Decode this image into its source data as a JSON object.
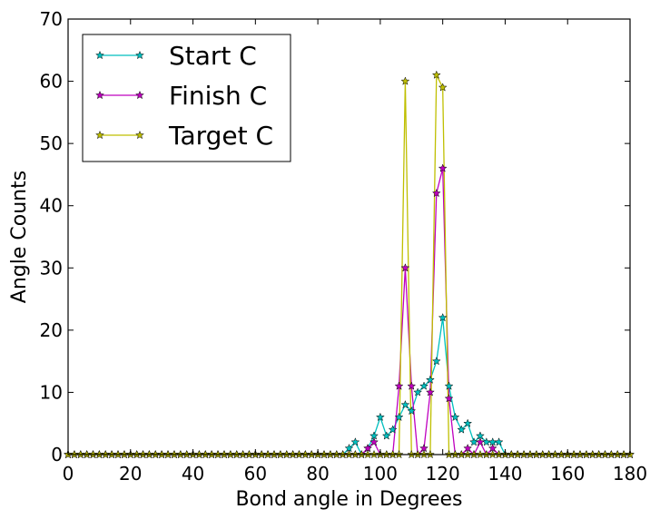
{
  "chart_data": {
    "type": "line",
    "xlabel": "Bond angle in Degrees",
    "ylabel": "Angle Counts",
    "xlim": [
      0,
      180
    ],
    "ylim": [
      0,
      70
    ],
    "xticks": [
      0,
      20,
      40,
      60,
      80,
      100,
      120,
      140,
      160,
      180
    ],
    "yticks": [
      0,
      10,
      20,
      30,
      40,
      50,
      60,
      70
    ],
    "grid": false,
    "legend_position": "top-left",
    "x": [
      0,
      2,
      4,
      6,
      8,
      10,
      12,
      14,
      16,
      18,
      20,
      22,
      24,
      26,
      28,
      30,
      32,
      34,
      36,
      38,
      40,
      42,
      44,
      46,
      48,
      50,
      52,
      54,
      56,
      58,
      60,
      62,
      64,
      66,
      68,
      70,
      72,
      74,
      76,
      78,
      80,
      82,
      84,
      86,
      88,
      90,
      92,
      94,
      96,
      98,
      100,
      102,
      104,
      106,
      108,
      110,
      112,
      114,
      116,
      118,
      120,
      122,
      124,
      126,
      128,
      130,
      132,
      134,
      136,
      138,
      140,
      142,
      144,
      146,
      148,
      150,
      152,
      154,
      156,
      158,
      160,
      162,
      164,
      166,
      168,
      170,
      172,
      174,
      176,
      178,
      180
    ],
    "series": [
      {
        "name": "Start C",
        "color": "#00bfbf",
        "values": [
          0,
          0,
          0,
          0,
          0,
          0,
          0,
          0,
          0,
          0,
          0,
          0,
          0,
          0,
          0,
          0,
          0,
          0,
          0,
          0,
          0,
          0,
          0,
          0,
          0,
          0,
          0,
          0,
          0,
          0,
          0,
          0,
          0,
          0,
          0,
          0,
          0,
          0,
          0,
          0,
          0,
          0,
          0,
          0,
          0,
          1,
          2,
          0,
          1,
          3,
          6,
          3,
          4,
          6,
          8,
          7,
          10,
          11,
          12,
          15,
          22,
          11,
          6,
          4,
          5,
          2,
          3,
          2,
          2,
          2,
          0,
          0,
          0,
          0,
          0,
          0,
          0,
          0,
          0,
          0,
          0,
          0,
          0,
          0,
          0,
          0,
          0,
          0,
          0,
          0,
          0
        ]
      },
      {
        "name": "Finish C",
        "color": "#bf00bf",
        "values": [
          0,
          0,
          0,
          0,
          0,
          0,
          0,
          0,
          0,
          0,
          0,
          0,
          0,
          0,
          0,
          0,
          0,
          0,
          0,
          0,
          0,
          0,
          0,
          0,
          0,
          0,
          0,
          0,
          0,
          0,
          0,
          0,
          0,
          0,
          0,
          0,
          0,
          0,
          0,
          0,
          0,
          0,
          0,
          0,
          0,
          0,
          0,
          0,
          1,
          2,
          0,
          0,
          0,
          11,
          30,
          11,
          0,
          1,
          10,
          42,
          46,
          9,
          0,
          0,
          1,
          0,
          2,
          0,
          1,
          0,
          0,
          0,
          0,
          0,
          0,
          0,
          0,
          0,
          0,
          0,
          0,
          0,
          0,
          0,
          0,
          0,
          0,
          0,
          0,
          0,
          0
        ]
      },
      {
        "name": "Target C",
        "color": "#bfbf00",
        "values": [
          0,
          0,
          0,
          0,
          0,
          0,
          0,
          0,
          0,
          0,
          0,
          0,
          0,
          0,
          0,
          0,
          0,
          0,
          0,
          0,
          0,
          0,
          0,
          0,
          0,
          0,
          0,
          0,
          0,
          0,
          0,
          0,
          0,
          0,
          0,
          0,
          0,
          0,
          0,
          0,
          0,
          0,
          0,
          0,
          0,
          0,
          0,
          0,
          0,
          0,
          0,
          0,
          0,
          0,
          60,
          0,
          0,
          0,
          0,
          61,
          59,
          0,
          0,
          0,
          0,
          0,
          0,
          0,
          0,
          0,
          0,
          0,
          0,
          0,
          0,
          0,
          0,
          0,
          0,
          0,
          0,
          0,
          0,
          0,
          0,
          0,
          0,
          0,
          0,
          0,
          0
        ]
      }
    ]
  }
}
